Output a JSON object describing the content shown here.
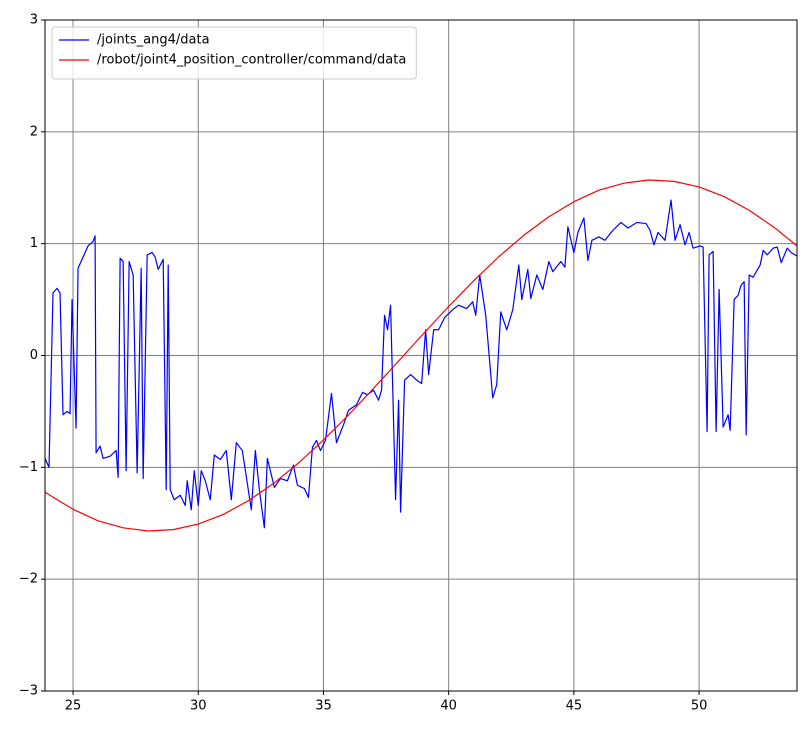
{
  "chart_data": {
    "type": "line",
    "xlim": [
      23.88,
      53.91
    ],
    "ylim": [
      -3,
      3
    ],
    "xticks": [
      25,
      30,
      35,
      40,
      45,
      50
    ],
    "yticks": [
      {
        "value": -3,
        "label": "−3"
      },
      {
        "value": -2,
        "label": "−2"
      },
      {
        "value": -1,
        "label": "−1"
      },
      0,
      1,
      2,
      3
    ],
    "grid": true,
    "grid_color": "#808080",
    "legend": "upper left",
    "series": [
      {
        "name": "/joints_ang4/data",
        "color": "#0000ff",
        "x": [
          23.88,
          24.04,
          24.2,
          24.36,
          24.48,
          24.6,
          24.76,
          24.88,
          24.96,
          25.12,
          25.2,
          25.44,
          25.6,
          25.8,
          25.88,
          25.92,
          26.08,
          26.2,
          26.48,
          26.72,
          26.8,
          26.88,
          27.0,
          27.12,
          27.24,
          27.4,
          27.56,
          27.72,
          27.8,
          27.96,
          28.16,
          28.28,
          28.4,
          28.6,
          28.72,
          28.8,
          28.88,
          29.04,
          29.28,
          29.48,
          29.56,
          29.72,
          29.84,
          30.0,
          30.12,
          30.28,
          30.48,
          30.64,
          30.88,
          31.12,
          31.32,
          31.52,
          31.76,
          32.12,
          32.28,
          32.44,
          32.64,
          32.76,
          33.04,
          33.28,
          33.56,
          33.8,
          33.96,
          34.24,
          34.4,
          34.56,
          34.72,
          34.88,
          35.08,
          35.32,
          35.52,
          35.8,
          36.0,
          36.32,
          36.56,
          36.76,
          37.0,
          37.2,
          37.32,
          37.44,
          37.56,
          37.68,
          37.88,
          38.0,
          38.08,
          38.24,
          38.48,
          38.72,
          38.92,
          39.08,
          39.2,
          39.4,
          39.6,
          39.84,
          40.16,
          40.4,
          40.72,
          40.96,
          41.08,
          41.24,
          41.48,
          41.76,
          41.92,
          42.08,
          42.32,
          42.56,
          42.8,
          42.92,
          43.16,
          43.28,
          43.52,
          43.76,
          44.0,
          44.16,
          44.48,
          44.64,
          44.76,
          45.0,
          45.16,
          45.4,
          45.56,
          45.72,
          46.0,
          46.24,
          46.56,
          46.88,
          47.16,
          47.52,
          47.88,
          48.04,
          48.2,
          48.36,
          48.64,
          48.88,
          49.04,
          49.24,
          49.44,
          49.6,
          49.76,
          50.04,
          50.16,
          50.32,
          50.4,
          50.56,
          50.68,
          50.8,
          50.96,
          51.16,
          51.24,
          51.4,
          51.56,
          51.68,
          51.8,
          51.88,
          52.0,
          52.16,
          52.44,
          52.56,
          52.72,
          52.96,
          53.12,
          53.28,
          53.52,
          53.68,
          53.91
        ],
        "values": [
          -0.92,
          -1.0,
          0.56,
          0.6,
          0.56,
          -0.53,
          -0.5,
          -0.52,
          0.5,
          -0.65,
          0.78,
          0.9,
          0.98,
          1.02,
          1.07,
          -0.87,
          -0.81,
          -0.92,
          -0.9,
          -0.85,
          -1.09,
          0.87,
          0.84,
          -1.03,
          0.84,
          0.72,
          -1.05,
          0.78,
          -1.1,
          0.9,
          0.92,
          0.88,
          0.77,
          0.86,
          -1.2,
          0.81,
          -1.2,
          -1.29,
          -1.25,
          -1.34,
          -1.12,
          -1.38,
          -1.03,
          -1.34,
          -1.03,
          -1.12,
          -1.29,
          -0.89,
          -0.93,
          -0.85,
          -1.29,
          -0.78,
          -0.85,
          -1.38,
          -0.85,
          -1.2,
          -1.54,
          -0.92,
          -1.18,
          -1.1,
          -1.12,
          -0.98,
          -1.16,
          -1.19,
          -1.27,
          -0.82,
          -0.76,
          -0.85,
          -0.76,
          -0.34,
          -0.78,
          -0.62,
          -0.49,
          -0.44,
          -0.33,
          -0.35,
          -0.31,
          -0.4,
          -0.31,
          0.36,
          0.23,
          0.45,
          -1.29,
          -0.4,
          -1.4,
          -0.22,
          -0.17,
          -0.22,
          -0.25,
          0.23,
          -0.17,
          0.23,
          0.23,
          0.34,
          0.41,
          0.45,
          0.42,
          0.48,
          0.36,
          0.72,
          0.36,
          -0.38,
          -0.26,
          0.39,
          0.23,
          0.41,
          0.81,
          0.5,
          0.77,
          0.51,
          0.72,
          0.59,
          0.84,
          0.75,
          0.84,
          0.79,
          1.15,
          0.92,
          1.1,
          1.23,
          0.85,
          1.03,
          1.06,
          1.03,
          1.12,
          1.19,
          1.14,
          1.19,
          1.18,
          1.12,
          0.99,
          1.1,
          1.03,
          1.39,
          1.03,
          1.17,
          0.99,
          1.1,
          0.96,
          0.98,
          0.97,
          -0.68,
          0.9,
          0.93,
          -0.68,
          0.59,
          -0.64,
          -0.53,
          -0.67,
          0.5,
          0.54,
          0.63,
          0.66,
          -0.71,
          0.72,
          0.7,
          0.81,
          0.94,
          0.9,
          0.96,
          0.97,
          0.83,
          0.96,
          0.92,
          0.89
        ]
      },
      {
        "name": "/robot/joint4_position_controller/command/data",
        "color": "#ff0000",
        "x": [
          23.88,
          24,
          25,
          26,
          27,
          28,
          29,
          30,
          31,
          32,
          33,
          34,
          35,
          36,
          37,
          38,
          39,
          40,
          41,
          42,
          43,
          44,
          45,
          46,
          47,
          48,
          49,
          50,
          51,
          52,
          53,
          53.91
        ],
        "values": [
          -1.22,
          -1.24,
          -1.375,
          -1.478,
          -1.541,
          -1.569,
          -1.557,
          -1.507,
          -1.421,
          -1.299,
          -1.145,
          -0.962,
          -0.756,
          -0.532,
          -0.294,
          -0.049,
          0.197,
          0.438,
          0.669,
          0.883,
          1.075,
          1.241,
          1.375,
          1.478,
          1.541,
          1.569,
          1.557,
          1.507,
          1.421,
          1.299,
          1.145,
          0.98
        ]
      }
    ]
  }
}
